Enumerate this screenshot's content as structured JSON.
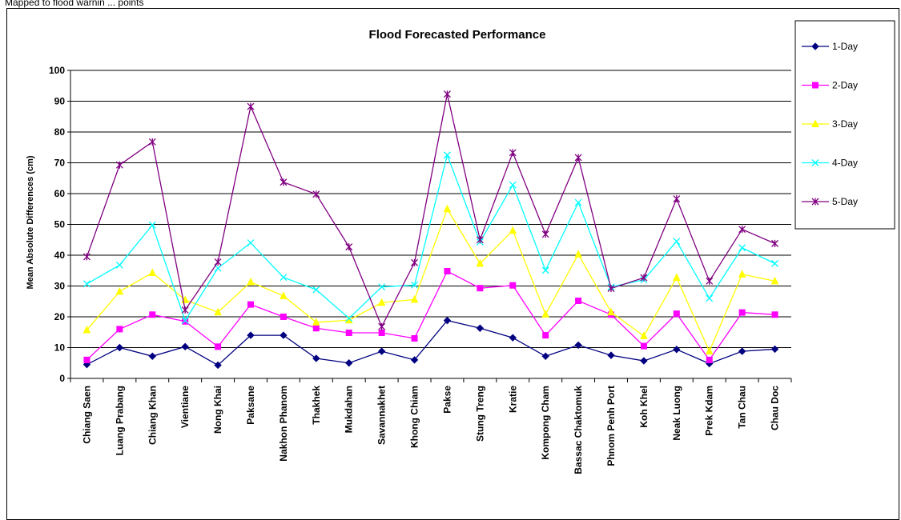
{
  "caption": "Mapped to flood warnin  ... points",
  "chart_data": {
    "type": "line",
    "title": "Flood Forecasted Performance",
    "xlabel": "",
    "ylabel": "Mean Absolute Differences (cm)",
    "ylim": [
      0,
      100
    ],
    "yticks": [
      "0",
      "10",
      "20",
      "30",
      "40",
      "50",
      "60",
      "70",
      "80",
      "90",
      "100"
    ],
    "grid": true,
    "legend_position": "right",
    "categories": [
      "Chiang Saen",
      "Luang Prabang",
      "Chiang Khan",
      "Vientiane",
      "Nong Khai",
      "Paksane",
      "Nakhon Phanom",
      "Thakhek",
      "Mukdahan",
      "Savannakhet",
      "Khong Chiam",
      "Pakse",
      "Stung Treng",
      "Kratie",
      "Kompong Cham",
      "Bassac Chaktomuk",
      "Phnom Penh Port",
      "Koh Khel",
      "Neak Luong",
      "Prek Kdam",
      "Tan Chau",
      "Chau Doc"
    ],
    "series": [
      {
        "name": "1-Day",
        "color": "#000080",
        "marker": "diamond",
        "values": [
          4.5,
          10,
          7.2,
          10.3,
          4.3,
          14,
          14,
          6.5,
          5,
          8.8,
          6,
          18.8,
          16.3,
          13.2,
          7.2,
          10.8,
          7.5,
          5.7,
          9.4,
          4.8,
          8.8,
          9.5
        ]
      },
      {
        "name": "2-Day",
        "color": "#FF00FF",
        "marker": "square",
        "values": [
          6,
          16,
          20.7,
          18.5,
          10.3,
          24,
          20,
          16.3,
          14.8,
          14.8,
          13,
          34.8,
          29.3,
          30.2,
          14,
          25.2,
          20.7,
          10.5,
          21,
          6,
          21.4,
          20.7
        ]
      },
      {
        "name": "3-Day",
        "color": "#FFFF00",
        "marker": "triangle",
        "values": [
          15.7,
          28.2,
          34.3,
          25.5,
          21.5,
          31.3,
          26.8,
          18.2,
          18.9,
          24.6,
          25.6,
          55,
          37.3,
          48,
          20.8,
          40.3,
          21.5,
          13.8,
          32.7,
          8.8,
          33.8,
          31.6
        ]
      },
      {
        "name": "4-Day",
        "color": "#00FFFF",
        "marker": "x",
        "values": [
          30.7,
          36.8,
          49.8,
          18.8,
          35.8,
          44,
          32.8,
          28.8,
          19.5,
          29.7,
          30.3,
          72.5,
          44.3,
          62.8,
          35.1,
          57.1,
          29.7,
          32,
          44.5,
          26,
          42.4,
          37.3
        ]
      },
      {
        "name": "5-Day",
        "color": "#800080",
        "marker": "star",
        "values": [
          39.5,
          69.3,
          76.8,
          22.2,
          37.8,
          88.3,
          63.7,
          59.8,
          42.7,
          16.8,
          37.6,
          92.3,
          45,
          73.3,
          46.8,
          71.7,
          29.2,
          32.7,
          58.3,
          31.6,
          48.4,
          43.8
        ]
      }
    ]
  }
}
